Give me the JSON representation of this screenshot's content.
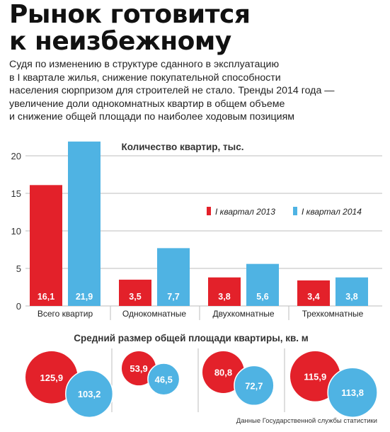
{
  "title_lines": [
    "Рынок готовится",
    "к неизбежному"
  ],
  "lead_lines": [
    "Судя по изменению в структуре сданного в эксплуатацию",
    "в I квартале жилья, снижение покупательной способности",
    "населения сюрпризом для строителей не стало. Тренды 2014 года  —",
    "увеличение доли однокомнатных квартир в общем объеме",
    "и снижение общей площади по наиболее ходовым позициям"
  ],
  "colors": {
    "red": "#e3212a",
    "blue": "#4fb3e3",
    "grid": "#bdbdbd"
  },
  "chart_data": [
    {
      "type": "bar",
      "title": "Количество квартир, тыс.",
      "categories": [
        "Всего квартир",
        "Однокомнатные",
        "Двухкомнатные",
        "Трехкомнатные"
      ],
      "series": [
        {
          "name": "I квартал 2013",
          "values": [
            16.1,
            3.5,
            3.8,
            3.4
          ],
          "labels": [
            "16,1",
            "3,5",
            "3,8",
            "3,4"
          ],
          "color": "#e3212a"
        },
        {
          "name": "I квартал 2014",
          "values": [
            21.9,
            7.7,
            5.6,
            3.8
          ],
          "labels": [
            "21,9",
            "7,7",
            "5,6",
            "3,8"
          ],
          "color": "#4fb3e3"
        }
      ],
      "yticks": [
        "0",
        "5",
        "10",
        "15",
        "20"
      ],
      "ylim": [
        0,
        22
      ],
      "legend": "right"
    },
    {
      "type": "bubble",
      "title": "Средний размер общей площади квартиры, кв. м",
      "categories": [
        "Всего квартир",
        "Однокомнатные",
        "Двухкомнатные",
        "Трехкомнатные"
      ],
      "series": [
        {
          "name": "I квартал 2013",
          "values": [
            125.9,
            53.9,
            80.8,
            115.9
          ],
          "labels": [
            "125,9",
            "53,9",
            "80,8",
            "115,9"
          ],
          "color": "#e3212a"
        },
        {
          "name": "I квартал 2014",
          "values": [
            103.2,
            46.5,
            72.7,
            113.8
          ],
          "labels": [
            "103,2",
            "46,5",
            "72,7",
            "113,8"
          ],
          "color": "#4fb3e3"
        }
      ]
    }
  ],
  "source": "Данные Государственной службы статистики"
}
